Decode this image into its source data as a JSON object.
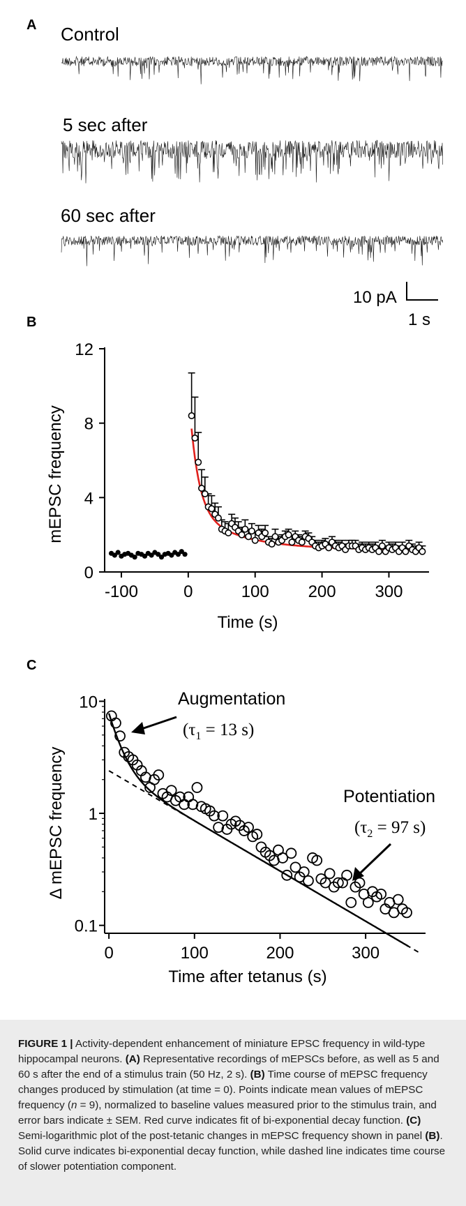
{
  "panel_a": {
    "letter": "A",
    "trace_labels": [
      "Control",
      "5 sec after",
      "60 sec after"
    ],
    "scalebar": {
      "y_label": "10 pA",
      "x_label": "1 s"
    }
  },
  "panel_b": {
    "letter": "B"
  },
  "panel_c": {
    "letter": "C",
    "annotations": {
      "augmentation": "Augmentation",
      "tau1": "(τ1 = 13 s)",
      "potentiation": "Potentiation",
      "tau2": "(τ2 = 97 s)"
    }
  },
  "caption": {
    "figure_label": "FIGURE 1 |",
    "intro": "Activity-dependent enhancement of miniature EPSC frequency in wild-type hippocampal neurons.",
    "a_label": "(A)",
    "a_text": "Representative recordings of mEPSCs before, as well as 5 and 60 s after the end of a stimulus train (50 Hz, 2 s).",
    "b_label": "(B)",
    "b_text1": "Time course of mEPSC frequency changes produced by stimulation (at time = 0). Points indicate mean values of mEPSC frequency (",
    "b_n": "n",
    "b_text2": " = 9), normalized to baseline values measured prior to the stimulus train, and error bars indicate ± SEM. Red curve indicates fit of bi-exponential decay function.",
    "c_label": "(C)",
    "c_text1": "Semi-logarithmic plot of the post-tetanic changes in mEPSC frequency shown in panel ",
    "c_ref": "(B)",
    "c_text2": ". Solid curve indicates bi-exponential decay function, while dashed line indicates time course of slower potentiation component."
  },
  "chart_data": [
    {
      "type": "line",
      "panel": "B",
      "xlabel": "Time (s)",
      "ylabel": "mEPSC frequency",
      "xlim": [
        -125,
        360
      ],
      "ylim": [
        0,
        12
      ],
      "xticks": [
        -100,
        0,
        100,
        200,
        300
      ],
      "yticks": [
        0,
        4,
        8,
        12
      ],
      "grid": false,
      "series": [
        {
          "x": [
            -115,
            -110,
            -105,
            -100,
            -95,
            -90,
            -85,
            -80,
            -75,
            -70,
            -65,
            -60,
            -55,
            -50,
            -45,
            -40,
            -35,
            -30,
            -25,
            -20,
            -15,
            -10,
            -5
          ],
          "y": [
            1.0,
            0.9,
            1.05,
            0.85,
            0.95,
            1.0,
            0.9,
            0.8,
            1.0,
            0.95,
            0.85,
            1.0,
            0.9,
            1.05,
            0.95,
            0.8,
            0.95,
            1.0,
            0.9,
            1.05,
            0.95,
            1.1,
            0.95
          ]
        },
        {
          "x": [
            5,
            10,
            15,
            20,
            25,
            30,
            35,
            40,
            45,
            50,
            55,
            60,
            65,
            70,
            75,
            80,
            85,
            90,
            95,
            100,
            105,
            110,
            115,
            120,
            125,
            130,
            135,
            140,
            145,
            150,
            155,
            160,
            165,
            170,
            175,
            180,
            185,
            190,
            195,
            200,
            205,
            210,
            215,
            220,
            225,
            230,
            235,
            240,
            245,
            250,
            255,
            260,
            265,
            270,
            275,
            280,
            285,
            290,
            295,
            300,
            305,
            310,
            315,
            320,
            325,
            330,
            335,
            340,
            345,
            350
          ],
          "y": [
            8.4,
            7.2,
            5.9,
            4.5,
            4.2,
            3.5,
            3.4,
            3.1,
            2.9,
            2.3,
            2.2,
            2.1,
            2.6,
            2.4,
            2.2,
            2.0,
            2.3,
            1.9,
            2.2,
            1.7,
            2.1,
            1.9,
            2.1,
            1.6,
            1.5,
            1.9,
            1.6,
            1.7,
            1.9,
            2.0,
            1.6,
            1.9,
            1.7,
            1.6,
            1.9,
            1.8,
            1.6,
            1.4,
            1.3,
            1.4,
            1.5,
            1.3,
            1.6,
            1.4,
            1.3,
            1.4,
            1.2,
            1.4,
            1.4,
            1.4,
            1.2,
            1.3,
            1.2,
            1.3,
            1.2,
            1.3,
            1.1,
            1.4,
            1.1,
            1.3,
            1.2,
            1.3,
            1.1,
            1.3,
            1.1,
            1.4,
            1.2,
            1.1,
            1.3,
            1.1
          ],
          "sem": [
            2.3,
            2.2,
            1.6,
            1.0,
            0.9,
            0.7,
            0.7,
            0.6,
            0.6,
            0.5,
            0.5,
            0.5,
            0.5,
            0.5,
            0.5,
            0.4,
            0.5,
            0.4,
            0.4,
            0.4,
            0.4,
            0.4,
            0.4,
            0.3,
            0.3,
            0.4,
            0.3,
            0.3,
            0.3,
            0.3,
            0.3,
            0.3,
            0.3,
            0.3,
            0.3,
            0.3,
            0.3,
            0.3,
            0.3,
            0.3,
            0.3,
            0.3,
            0.3,
            0.3,
            0.3,
            0.3,
            0.3,
            0.3,
            0.3,
            0.3,
            0.3,
            0.3,
            0.3,
            0.3,
            0.3,
            0.3,
            0.3,
            0.3,
            0.3,
            0.3,
            0.3,
            0.3,
            0.3,
            0.3,
            0.3,
            0.3,
            0.3,
            0.3,
            0.3,
            0.3
          ]
        },
        {
          "name": "fit",
          "color": "#e0201c",
          "x_range": [
            5,
            350
          ]
        }
      ]
    },
    {
      "type": "scatter",
      "panel": "C",
      "xlabel": "Time after tetanus (s)",
      "ylabel": "Δ mEPSC frequency",
      "xlim": [
        -5,
        370
      ],
      "ylim": [
        0.085,
        10.5
      ],
      "log_y": true,
      "xticks": [
        0,
        100,
        200,
        300
      ],
      "yticks": [
        0.1,
        1,
        10
      ],
      "grid": false,
      "series": [
        {
          "x": [
            3,
            8,
            13,
            18,
            23,
            28,
            33,
            38,
            43,
            48,
            53,
            58,
            63,
            68,
            73,
            78,
            83,
            88,
            93,
            98,
            103,
            108,
            113,
            118,
            123,
            128,
            133,
            138,
            143,
            148,
            153,
            158,
            163,
            168,
            173,
            178,
            183,
            188,
            193,
            198,
            203,
            208,
            213,
            218,
            223,
            228,
            233,
            238,
            243,
            248,
            253,
            258,
            263,
            268,
            273,
            278,
            283,
            288,
            293,
            298,
            303,
            308,
            313,
            318,
            323,
            328,
            333,
            338,
            343,
            348
          ],
          "y": [
            7.4,
            6.4,
            4.9,
            3.5,
            3.2,
            3.0,
            2.7,
            2.4,
            2.1,
            1.7,
            2.0,
            2.2,
            1.5,
            1.4,
            1.6,
            1.3,
            1.4,
            1.2,
            1.4,
            1.2,
            1.7,
            1.15,
            1.1,
            1.05,
            0.95,
            0.75,
            0.95,
            0.72,
            0.8,
            0.85,
            0.78,
            0.7,
            0.75,
            0.62,
            0.65,
            0.5,
            0.45,
            0.42,
            0.38,
            0.47,
            0.4,
            0.28,
            0.44,
            0.33,
            0.27,
            0.3,
            0.25,
            0.4,
            0.38,
            0.26,
            0.24,
            0.29,
            0.22,
            0.24,
            0.24,
            0.28,
            0.16,
            0.22,
            0.24,
            0.19,
            0.16,
            0.2,
            0.18,
            0.19,
            0.14,
            0.16,
            0.13,
            0.17,
            0.14,
            0.13
          ]
        },
        {
          "name": "bi-exponential fit",
          "style": "solid",
          "x_range": [
            0,
            350
          ]
        },
        {
          "name": "potentiation component",
          "style": "dashed",
          "x_range": [
            0,
            365
          ]
        }
      ]
    }
  ]
}
